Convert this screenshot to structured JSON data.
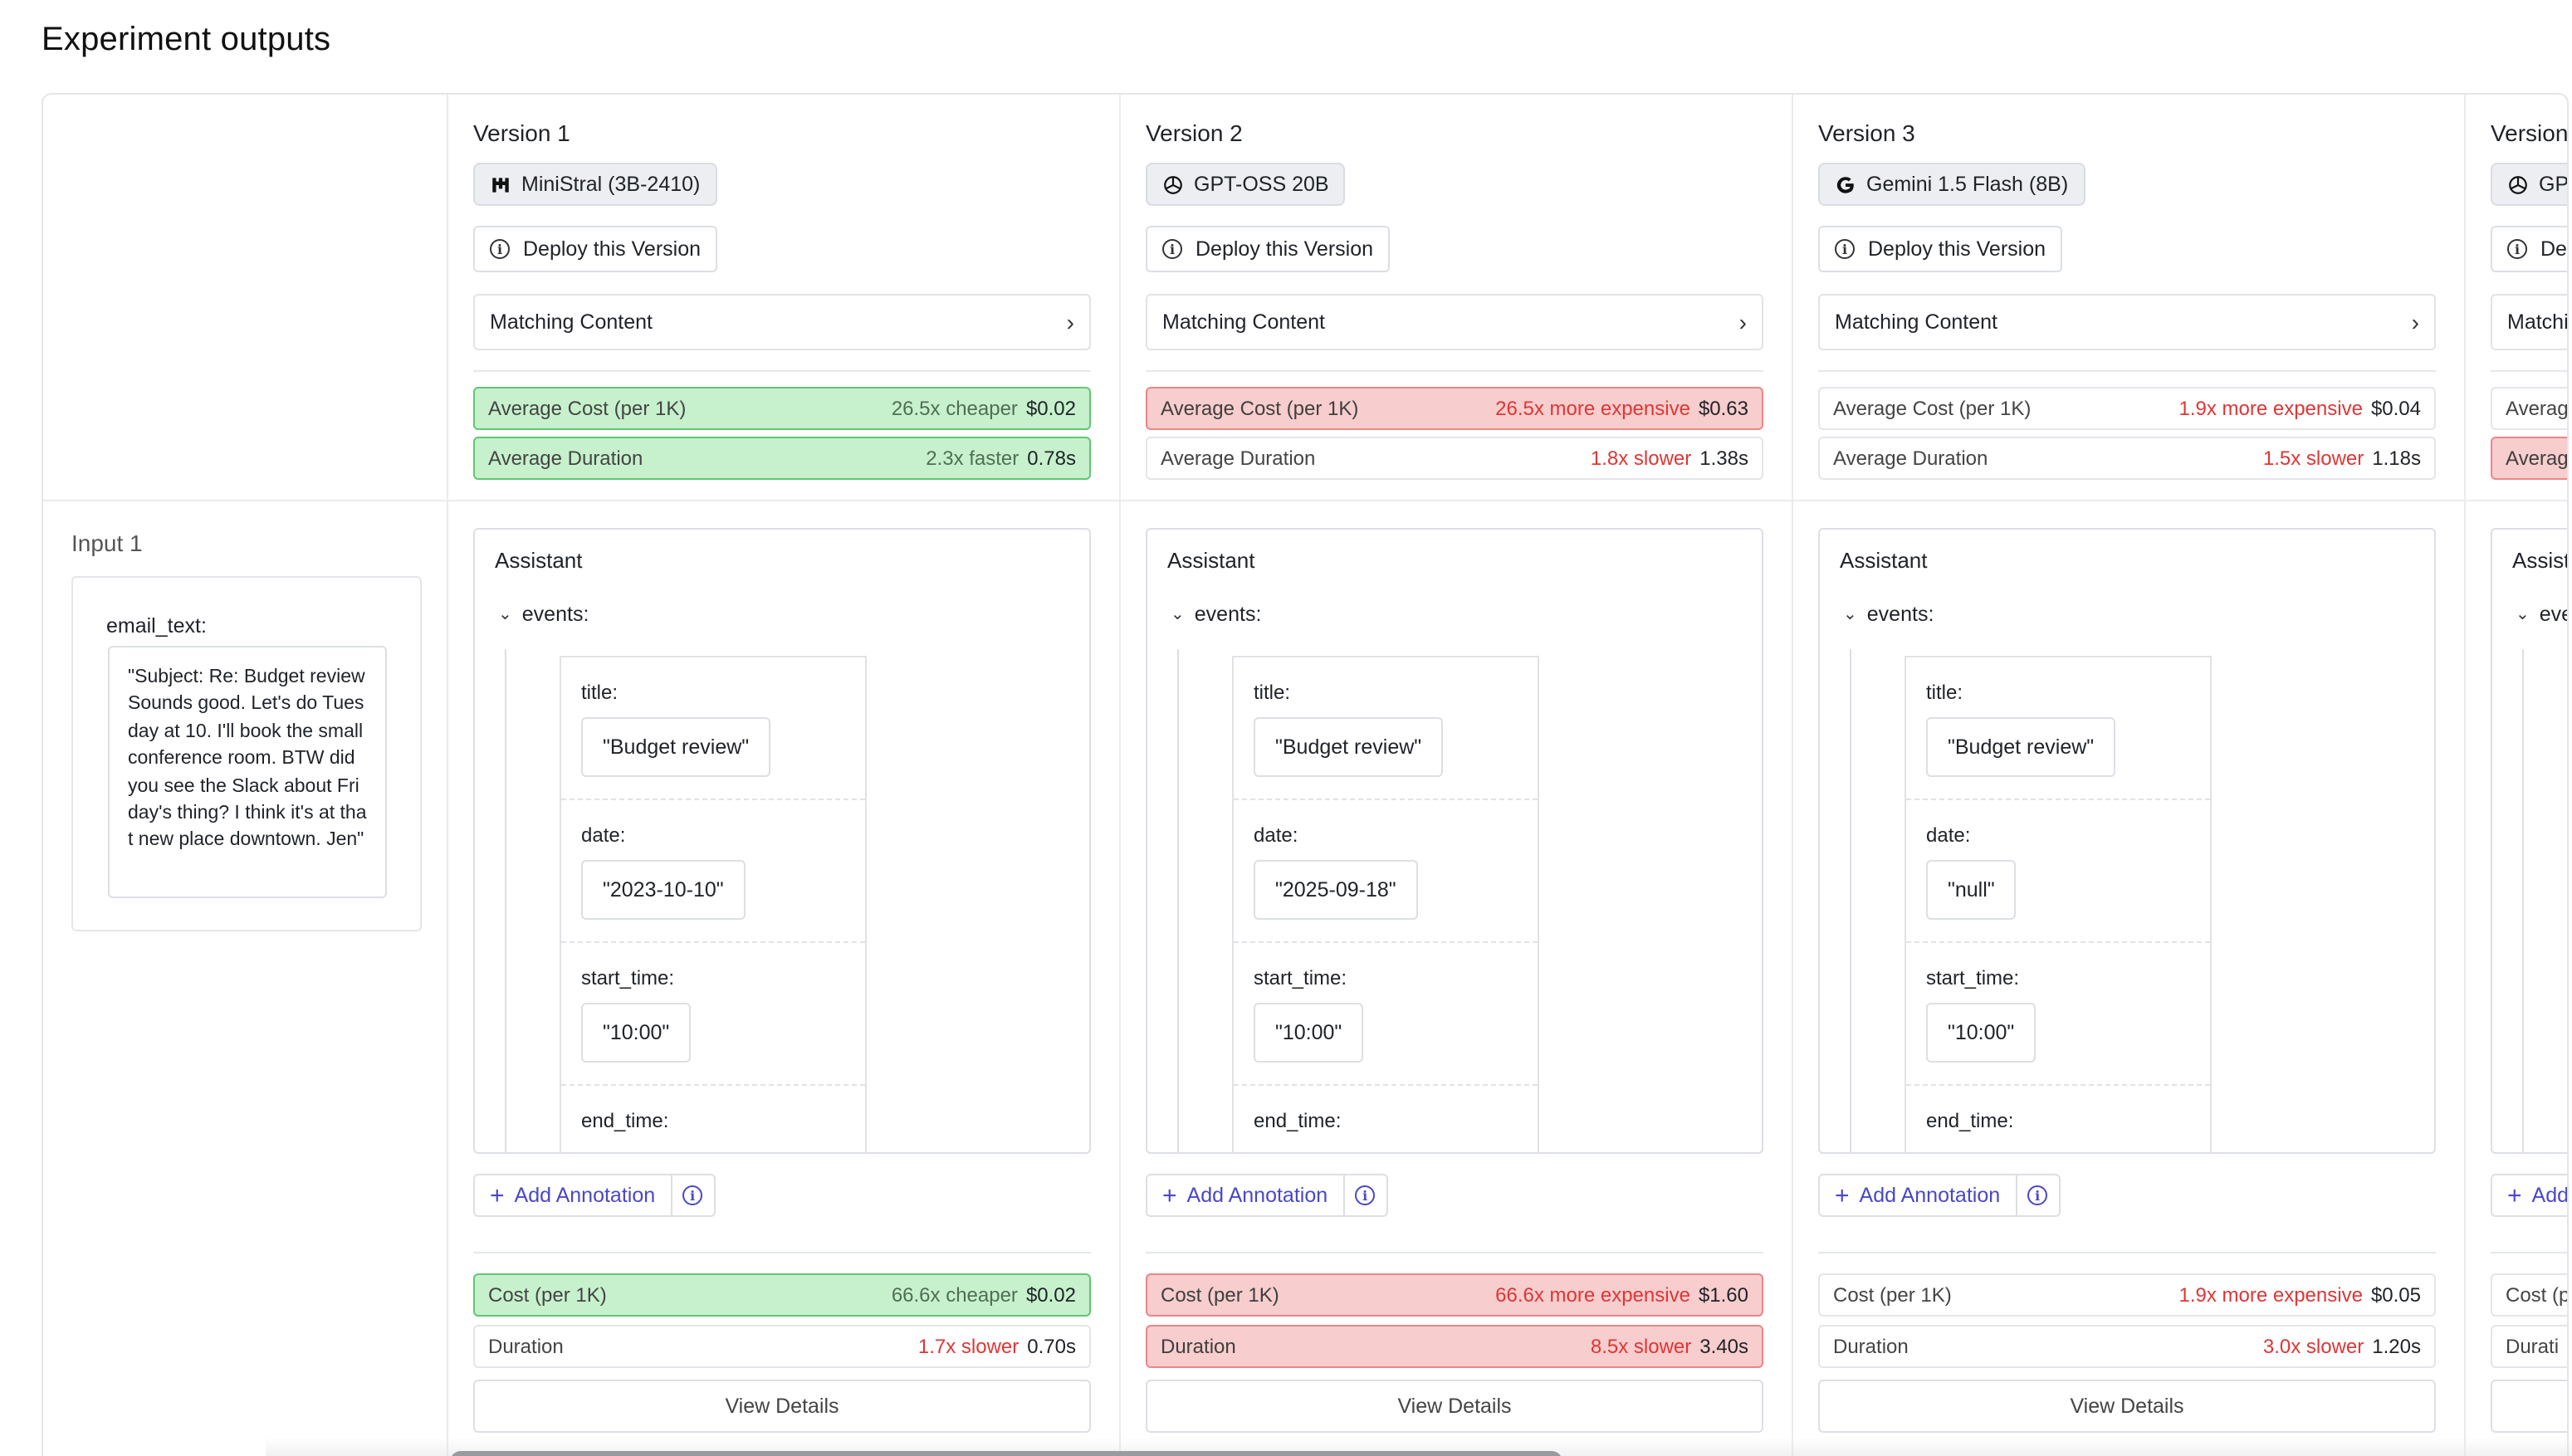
{
  "page": {
    "title": "Experiment outputs"
  },
  "input": {
    "label": "Input 1",
    "key": "email_text:",
    "value": "\"Subject: Re: Budget review Sounds good. Let's do Tuesday at 10. I'll book the small conference room. BTW did you see the Slack about Friday's thing? I think it's at that new place downtown. Jen\""
  },
  "common": {
    "deploy_label": "Deploy this Version",
    "matching_label": "Matching Content",
    "assistant_label": "Assistant",
    "events_label": "events:",
    "annotation_label": "Add Annotation",
    "details_label": "View Details",
    "avg_cost_label": "Average Cost (per 1K)",
    "avg_duration_label": "Average Duration",
    "cost_label": "Cost (per 1K)",
    "duration_label": "Duration",
    "field_labels": {
      "title": "title:",
      "date": "date:",
      "start_time": "start_time:",
      "end_time": "end_time:"
    }
  },
  "versions": [
    {
      "title": "Version 1",
      "model": "MiniStral (3B-2410)",
      "model_icon": "mistral-icon",
      "avg_cost": {
        "compare": "26.5x cheaper",
        "value": "$0.02",
        "status": "good"
      },
      "avg_duration": {
        "compare": "2.3x faster",
        "value": "0.78s",
        "status": "good"
      },
      "event": {
        "title": "\"Budget review\"",
        "date": "\"2023-10-10\"",
        "start_time": "\"10:00\""
      },
      "cost": {
        "compare": "66.6x cheaper",
        "value": "$0.02",
        "status": "good"
      },
      "duration": {
        "compare": "1.7x slower",
        "value": "0.70s",
        "status": "neutral"
      }
    },
    {
      "title": "Version 2",
      "model": "GPT-OSS 20B",
      "model_icon": "openai-icon",
      "avg_cost": {
        "compare": "26.5x more expensive",
        "value": "$0.63",
        "status": "bad"
      },
      "avg_duration": {
        "compare": "1.8x slower",
        "value": "1.38s",
        "status": "neutral"
      },
      "event": {
        "title": "\"Budget review\"",
        "date": "\"2025-09-18\"",
        "start_time": "\"10:00\""
      },
      "cost": {
        "compare": "66.6x more expensive",
        "value": "$1.60",
        "status": "bad"
      },
      "duration": {
        "compare": "8.5x slower",
        "value": "3.40s",
        "status": "bad"
      }
    },
    {
      "title": "Version 3",
      "model": "Gemini 1.5 Flash (8B)",
      "model_icon": "google-icon",
      "avg_cost": {
        "compare": "1.9x more expensive",
        "value": "$0.04",
        "status": "neutral"
      },
      "avg_duration": {
        "compare": "1.5x slower",
        "value": "1.18s",
        "status": "neutral"
      },
      "event": {
        "title": "\"Budget review\"",
        "date": "\"null\"",
        "start_time": "\"10:00\""
      },
      "cost": {
        "compare": "1.9x more expensive",
        "value": "$0.05",
        "status": "neutral"
      },
      "duration": {
        "compare": "3.0x slower",
        "value": "1.20s",
        "status": "neutral"
      }
    }
  ],
  "partial_version": {
    "title": "Version",
    "model": "GPT",
    "deploy": "De",
    "matching": "Matchi",
    "avg_cost": "Averag",
    "avg_duration": "Averag",
    "assistant": "Assist",
    "events": "eve",
    "annotation": "Add",
    "cost": "Cost (p",
    "duration": "Durati"
  }
}
